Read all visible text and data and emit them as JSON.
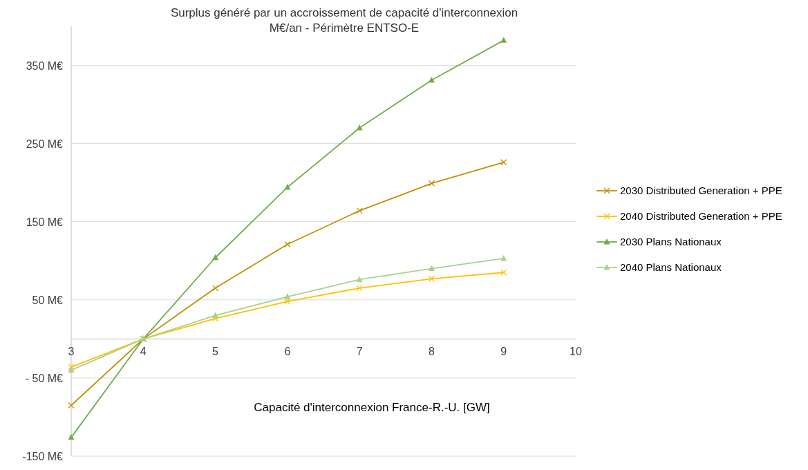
{
  "chart_data": {
    "type": "line",
    "title": "Surplus généré par un accroissement de capacité d'interconnexion",
    "subtitle": "M€/an - Périmètre ENTSO-E",
    "xlabel": "Capacité d'interconnexion France-R.-U. [GW]",
    "x": [
      3,
      4,
      5,
      6,
      7,
      8,
      9
    ],
    "series": [
      {
        "name": "2030 Distributed Generation + PPE",
        "color": "#bf9000",
        "marker": "cross",
        "values": [
          -85,
          0,
          65,
          121,
          164,
          199,
          226
        ]
      },
      {
        "name": "2040 Distributed Generation + PPE",
        "color": "#ffc000",
        "marker": "cross",
        "values": [
          -36,
          0,
          26,
          48,
          65,
          77,
          85
        ]
      },
      {
        "name": "2030 Plans Nationaux",
        "color": "#70ad47",
        "marker": "triangle",
        "values": [
          -126,
          0,
          104,
          194,
          270,
          331,
          382
        ]
      },
      {
        "name": "2040 Plans Nationaux",
        "color": "#a9d18e",
        "marker": "triangle",
        "values": [
          -40,
          0,
          30,
          54,
          76,
          90,
          103
        ]
      }
    ],
    "xlim": [
      3,
      10
    ],
    "xticks": [
      3,
      4,
      5,
      6,
      7,
      8,
      9,
      10
    ],
    "ylim": [
      -150,
      400
    ],
    "yticks": [
      {
        "value": -150,
        "label": "-150  M€"
      },
      {
        "value": -50,
        "label": "- 50  M€"
      },
      {
        "value": 50,
        "label": "50  M€"
      },
      {
        "value": 150,
        "label": "150  M€"
      },
      {
        "value": 250,
        "label": "250  M€"
      },
      {
        "value": 350,
        "label": "350  M€"
      }
    ],
    "grid": "y",
    "legend": "right",
    "line_style": "solid"
  }
}
